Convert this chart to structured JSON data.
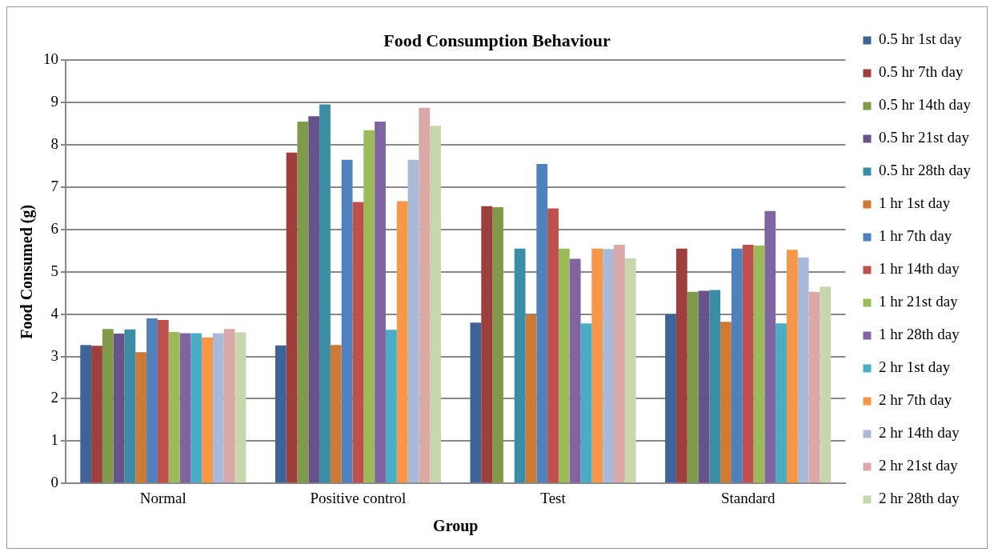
{
  "chart_data": {
    "type": "bar",
    "title": "Food Consumption Behaviour",
    "xlabel": "Group",
    "ylabel": "Food Consumed (g)",
    "categories": [
      "Normal",
      "Positive control",
      "Test",
      "Standard"
    ],
    "ylim": [
      0,
      10
    ],
    "yticks": [
      0,
      1,
      2,
      3,
      4,
      5,
      6,
      7,
      8,
      9,
      10
    ],
    "grid": "y",
    "legend": "right",
    "series": [
      {
        "name": "0.5 hr 1st day",
        "color": "#3e6497",
        "values": [
          3.27,
          3.26,
          3.8,
          4.0
        ]
      },
      {
        "name": "0.5 hr 7th day",
        "color": "#9e3f3d",
        "values": [
          3.25,
          7.82,
          6.55,
          5.55
        ]
      },
      {
        "name": "0.5 hr 14th day",
        "color": "#7f9a48",
        "values": [
          3.65,
          8.55,
          6.53,
          4.53
        ]
      },
      {
        "name": "0.5 hr 21st day",
        "color": "#67538a",
        "values": [
          3.54,
          8.68,
          null,
          4.55
        ]
      },
      {
        "name": "0.5 hr 28th day",
        "color": "#3b8da5",
        "values": [
          3.64,
          8.96,
          5.55,
          4.57
        ]
      },
      {
        "name": "1 hr 1st day",
        "color": "#cc7a36",
        "values": [
          3.1,
          3.27,
          3.98,
          3.82
        ]
      },
      {
        "name": "1 hr 7th day",
        "color": "#4f81bd",
        "values": [
          3.9,
          7.65,
          7.55,
          5.55
        ]
      },
      {
        "name": "1 hr 14th day",
        "color": "#c0504d",
        "values": [
          3.86,
          6.65,
          6.5,
          5.64
        ]
      },
      {
        "name": "1 hr 21st day",
        "color": "#9bbb59",
        "values": [
          3.58,
          8.35,
          5.55,
          5.62
        ]
      },
      {
        "name": "1 hr 28th day",
        "color": "#8064a2",
        "values": [
          3.55,
          8.55,
          5.31,
          6.44
        ]
      },
      {
        "name": "2 hr 1st day",
        "color": "#4bacc6",
        "values": [
          3.55,
          3.63,
          3.78,
          3.78
        ]
      },
      {
        "name": "2 hr 7th day",
        "color": "#f79646",
        "values": [
          3.45,
          6.67,
          5.55,
          5.52
        ]
      },
      {
        "name": "2 hr 14th day",
        "color": "#a9bad9",
        "values": [
          3.55,
          7.65,
          5.54,
          5.34
        ]
      },
      {
        "name": "2 hr 21st day",
        "color": "#d9a8a7",
        "values": [
          3.65,
          8.88,
          5.64,
          4.53
        ]
      },
      {
        "name": "2 hr 28th day",
        "color": "#c8d7ab",
        "values": [
          3.57,
          8.45,
          5.32,
          4.65
        ]
      }
    ]
  }
}
